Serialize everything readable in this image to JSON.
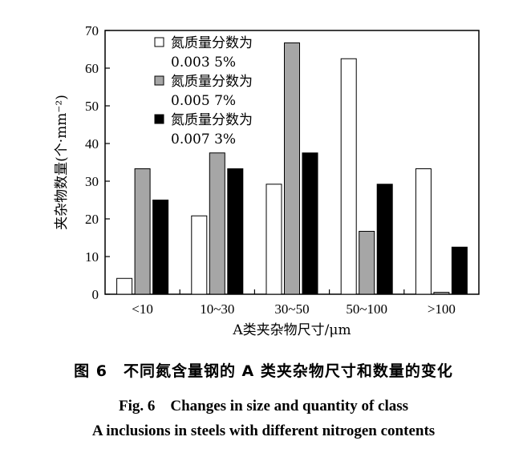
{
  "chart_data": {
    "type": "bar",
    "categories": [
      "<10",
      "10~30",
      "30~50",
      "50~100",
      ">100"
    ],
    "series": [
      {
        "name_line1": "氮质量分数为",
        "name_line2": "0.003 5%",
        "fill": "#ffffff",
        "values": [
          4.2,
          20.8,
          29.2,
          62.5,
          33.3
        ]
      },
      {
        "name_line1": "氮质量分数为",
        "name_line2": "0.005 7%",
        "fill": "#a6a6a6",
        "values": [
          33.3,
          37.5,
          66.7,
          16.7,
          0.5
        ]
      },
      {
        "name_line1": "氮质量分数为",
        "name_line2": "0.007 3%",
        "fill": "#000000",
        "values": [
          25.0,
          33.3,
          37.5,
          29.2,
          12.5
        ]
      }
    ],
    "xlabel": "A类夹杂物尺寸/μm",
    "ylabel": "夹杂物数量(个·mm⁻²)",
    "ylim": [
      0,
      70
    ],
    "yticks": [
      0,
      10,
      20,
      30,
      40,
      50,
      60,
      70
    ],
    "legend_position": "top-left",
    "grid": false
  },
  "caption": {
    "cn": "图 6　不同氮含量钢的 A 类夹杂物尺寸和数量的变化",
    "en_line1": "Fig. 6　Changes in size and quantity of class",
    "en_line2": "A inclusions in steels with different nitrogen contents"
  }
}
